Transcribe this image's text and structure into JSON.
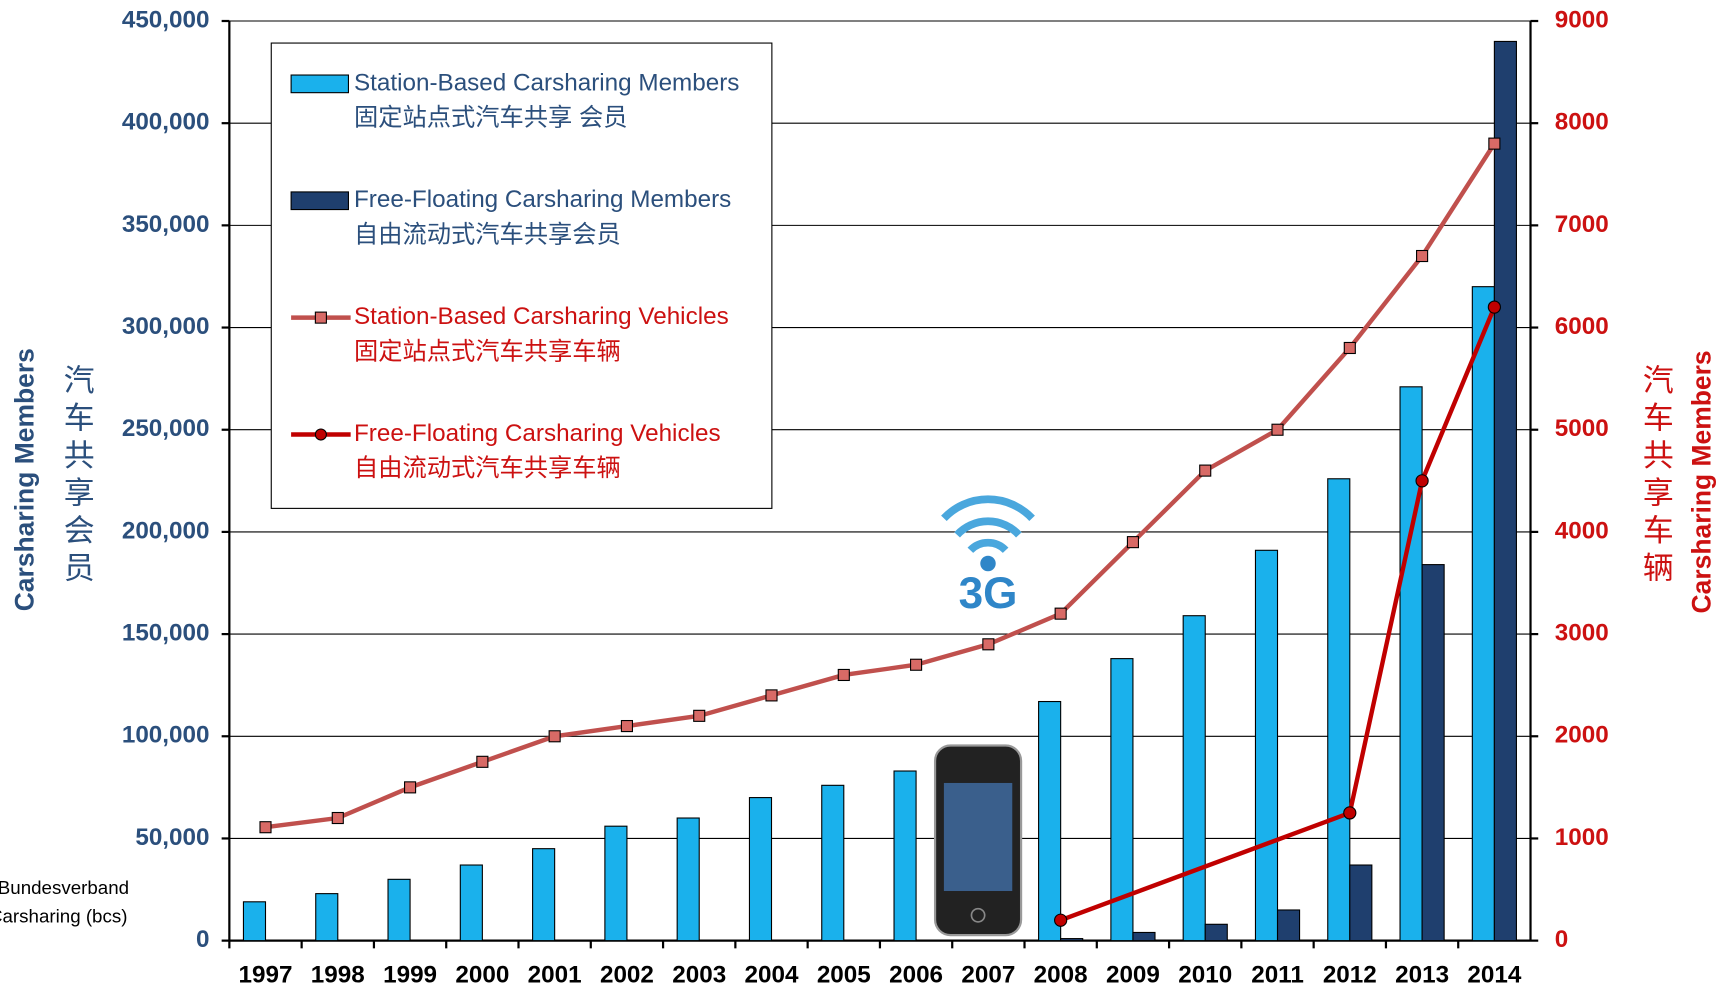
{
  "chart_data": {
    "type": "bar",
    "categories": [
      "1997",
      "1998",
      "1999",
      "2000",
      "2001",
      "2002",
      "2003",
      "2004",
      "2005",
      "2006",
      "2007",
      "2008",
      "2009",
      "2010",
      "2011",
      "2012",
      "2013",
      "2014"
    ],
    "series": [
      {
        "type": "bar",
        "name": "Station-Based Carsharing Members",
        "name_cn": "固定站点式汽车共享 会员",
        "color": "#1ab1ec",
        "values": [
          19000,
          23000,
          30000,
          37000,
          45000,
          56000,
          60000,
          70000,
          76000,
          83000,
          null,
          117000,
          138000,
          159000,
          191000,
          226000,
          271000,
          320000
        ]
      },
      {
        "type": "bar",
        "name": "Free-Floating Carsharing Members",
        "name_cn": "自由流动式汽车共享会员",
        "color": "#1f3f6e",
        "values": [
          null,
          null,
          null,
          null,
          null,
          null,
          null,
          null,
          null,
          null,
          null,
          1000,
          4000,
          8000,
          15000,
          37000,
          184000,
          440000
        ]
      },
      {
        "type": "line",
        "axis": "y2",
        "name": "Station-Based Carsharing Vehicles",
        "name_cn": "固定站点式汽车共享车辆",
        "color": "#c0504d",
        "values": [
          1110,
          1200,
          1500,
          1750,
          2000,
          2100,
          2200,
          2400,
          2600,
          2700,
          2900,
          3200,
          3900,
          4600,
          5000,
          5800,
          6700,
          7800
        ]
      },
      {
        "type": "line",
        "axis": "y2",
        "name": "Free-Floating Carsharing Vehicles",
        "name_cn": "自由流动式汽车共享车辆",
        "color": "#c00000",
        "x": [
          "2008",
          "2012",
          "2013",
          "2014"
        ],
        "values": [
          200,
          1250,
          4500,
          6200
        ]
      }
    ],
    "y_title": "Carsharing Members",
    "y_title_cn": "汽车共享会员",
    "y2_title": "Carsharing Members",
    "y2_title_cn": "汽车共享车辆",
    "source": [
      "Bundesverband",
      "Carsharing (bcs)"
    ],
    "ylim": [
      0,
      450000
    ],
    "yticks": [
      0,
      {
        "value": 50000,
        "label": "50,000"
      },
      {
        "value": 100000,
        "label": "100,000"
      },
      {
        "value": 150000,
        "label": "150,000"
      },
      {
        "value": 200000,
        "label": "200,000"
      },
      {
        "value": 250000,
        "label": "250,000"
      },
      {
        "value": 300000,
        "label": "300,000"
      },
      {
        "value": 350000,
        "label": "350,000"
      },
      {
        "value": 400000,
        "label": "400,000"
      },
      {
        "value": 450000,
        "label": "450,000"
      }
    ],
    "y2lim": [
      0,
      9000
    ],
    "y2ticks": [
      0,
      1000,
      2000,
      3000,
      4000,
      5000,
      6000,
      7000,
      8000,
      9000
    ],
    "grid": true,
    "legend": "upper left"
  }
}
